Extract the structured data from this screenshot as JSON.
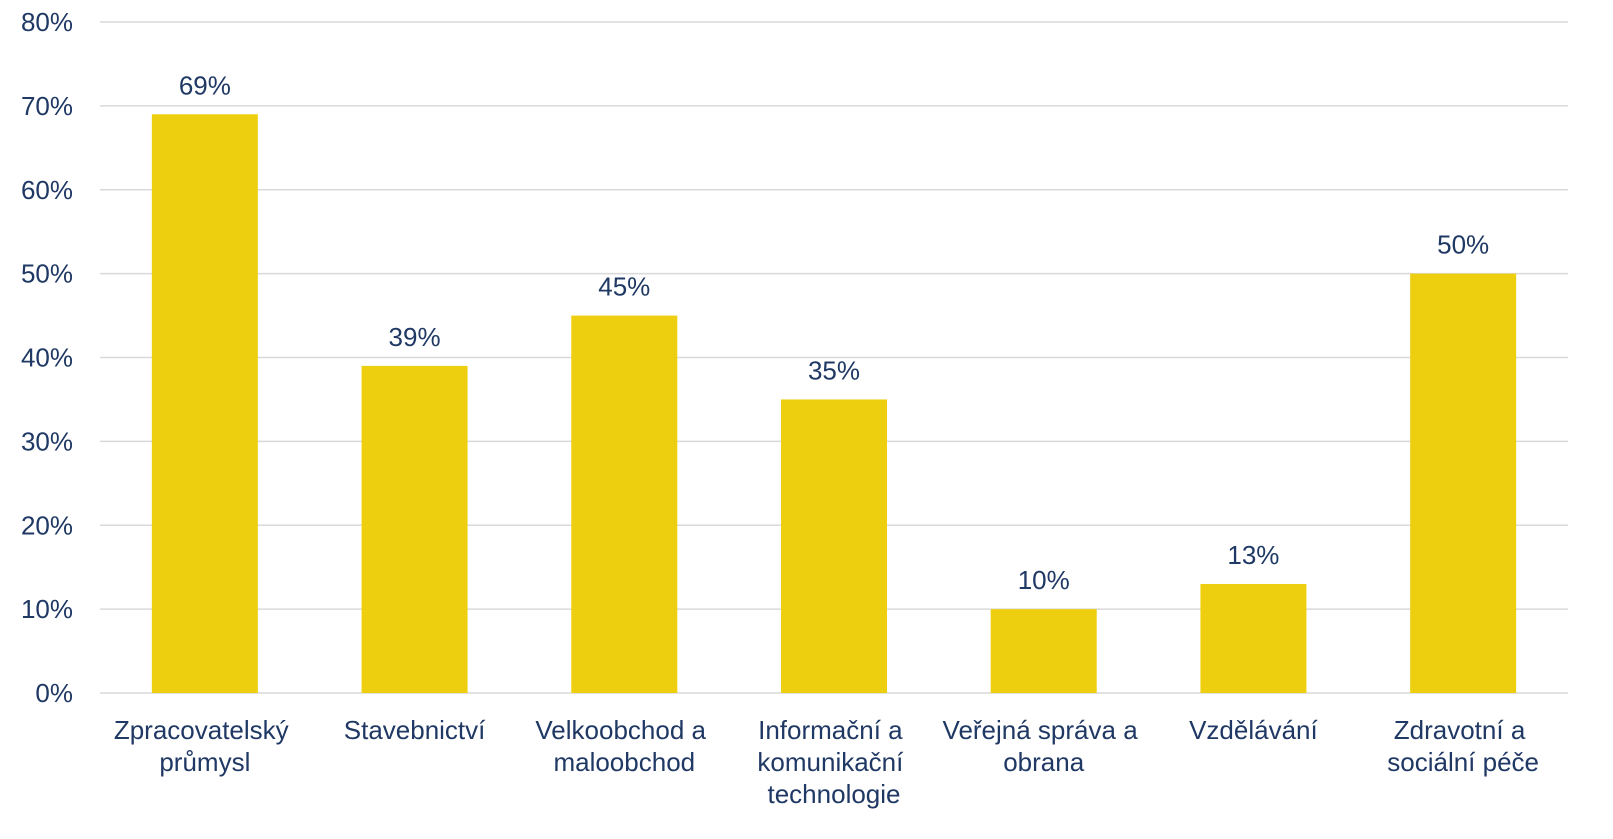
{
  "chart_data": {
    "type": "bar",
    "categories": [
      "Zpracovatelský průmysl",
      "Stavebnictví",
      "Velkoobchod a maloobchod",
      "Informační a komunikační technologie",
      "Veřejná správa a obrana",
      "Vzdělávání",
      "Zdravotní a sociální péče"
    ],
    "values": [
      69,
      39,
      45,
      35,
      10,
      13,
      50
    ],
    "value_labels": [
      "69%",
      "39%",
      "45%",
      "35%",
      "10%",
      "13%",
      "50%"
    ],
    "color": "#eecf10",
    "ylim": [
      0,
      80
    ],
    "yticks": [
      {
        "value": 0,
        "label": "0%"
      },
      {
        "value": 10,
        "label": "10%"
      },
      {
        "value": 20,
        "label": "20%"
      },
      {
        "value": 30,
        "label": "30%"
      },
      {
        "value": 40,
        "label": "40%"
      },
      {
        "value": 50,
        "label": "50%"
      },
      {
        "value": 60,
        "label": "60%"
      },
      {
        "value": 70,
        "label": "70%"
      },
      {
        "value": 80,
        "label": "80%"
      }
    ],
    "grid": true
  }
}
